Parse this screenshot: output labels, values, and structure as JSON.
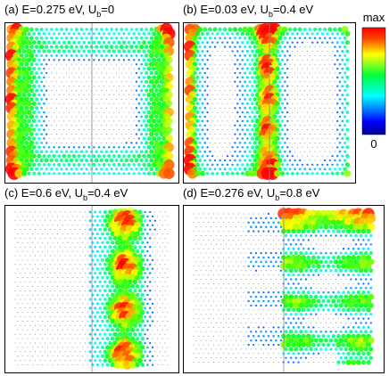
{
  "panels": [
    {
      "label": "(a) E=0.275 eV, U",
      "sub": "b",
      "rest": "=0"
    },
    {
      "label": "(b) E=0.03 eV, U",
      "sub": "b",
      "rest": "=0.4 eV"
    },
    {
      "label": "(c) E=0.6 eV, U",
      "sub": "b",
      "rest": "=0.4 eV"
    },
    {
      "label": "(d) E=0.276 eV, U",
      "sub": "b",
      "rest": "=0.8 eV"
    }
  ],
  "colorbar": {
    "max": "max",
    "min": "0"
  }
}
